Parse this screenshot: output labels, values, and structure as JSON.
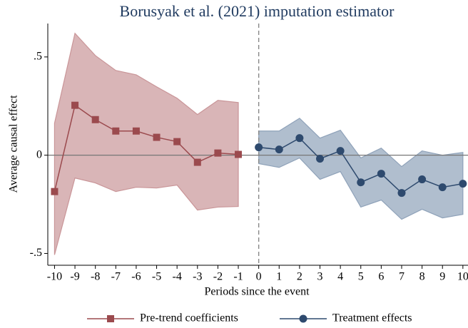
{
  "chart_data": {
    "type": "line",
    "title": "Borusyak et al. (2021) imputation estimator",
    "xlabel": "Periods since the event",
    "ylabel": "Average causal effect",
    "xlim": [
      -10.33,
      10.25
    ],
    "ylim": [
      -0.56,
      0.67
    ],
    "xticks": [
      -10,
      -9,
      -8,
      -7,
      -6,
      -5,
      -4,
      -3,
      -2,
      -1,
      0,
      1,
      2,
      3,
      4,
      5,
      6,
      7,
      8,
      9,
      10
    ],
    "yticks": [
      {
        "value": -0.5,
        "label": "-.5"
      },
      0,
      {
        "value": 0.5,
        "label": ".5"
      }
    ],
    "reference_lines": {
      "x": 0,
      "y": 0
    },
    "legend": "bottom",
    "series": [
      {
        "name": "Pre-trend coefficients",
        "color": "#9b4a4e",
        "band_color": "#c99598",
        "marker": "square",
        "x": [
          -10,
          -9,
          -8,
          -7,
          -6,
          -5,
          -4,
          -3,
          -2,
          -1
        ],
        "values": [
          -0.185,
          0.254,
          0.181,
          0.123,
          0.123,
          0.091,
          0.069,
          -0.036,
          0.011,
          0.004
        ],
        "lower": [
          -0.507,
          -0.116,
          -0.141,
          -0.185,
          -0.163,
          -0.167,
          -0.152,
          -0.279,
          -0.264,
          -0.261
        ],
        "upper": [
          0.163,
          0.62,
          0.507,
          0.431,
          0.409,
          0.348,
          0.29,
          0.207,
          0.279,
          0.268
        ]
      },
      {
        "name": "Treatment effects",
        "color": "#2e4a6e",
        "band_color": "#8fa2b9",
        "marker": "circle",
        "x": [
          0,
          1,
          2,
          3,
          4,
          5,
          6,
          7,
          8,
          9,
          10
        ],
        "values": [
          0.04,
          0.029,
          0.087,
          -0.018,
          0.022,
          -0.138,
          -0.094,
          -0.192,
          -0.123,
          -0.163,
          -0.145
        ],
        "lower": [
          -0.043,
          -0.062,
          -0.014,
          -0.123,
          -0.083,
          -0.264,
          -0.228,
          -0.326,
          -0.275,
          -0.319,
          -0.301
        ],
        "upper": [
          0.123,
          0.123,
          0.188,
          0.087,
          0.127,
          -0.014,
          0.036,
          -0.058,
          0.022,
          0,
          0.014
        ]
      }
    ]
  }
}
